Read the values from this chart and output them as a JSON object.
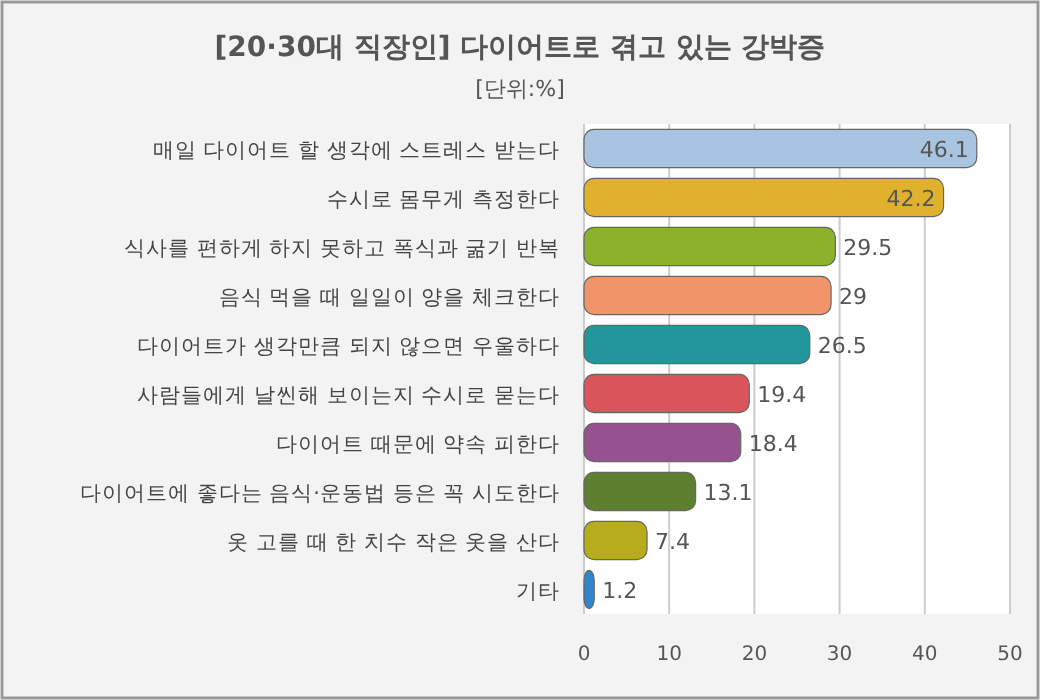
{
  "chart_data": {
    "type": "bar",
    "orientation": "horizontal",
    "title": "[20·30대 직장인] 다이어트로 겪고 있는 강박증",
    "subtitle": "[단위:%]",
    "categories": [
      "매일 다이어트 할 생각에 스트레스 받는다",
      "수시로 몸무게 측정한다",
      "식사를 편하게 하지 못하고 폭식과 굶기 반복",
      "음식 먹을 때 일일이 양을 체크한다",
      "다이어트가 생각만큼 되지 않으면 우울하다",
      "사람들에게 날씬해 보이는지 수시로 묻는다",
      "다이어트 때문에 약속 피한다",
      "다이어트에 좋다는 음식·운동법 등은 꼭 시도한다",
      "옷 고를 때 한 치수 작은 옷을 산다",
      "기타"
    ],
    "values": [
      46.1,
      42.2,
      29.5,
      29,
      26.5,
      19.4,
      18.4,
      13.1,
      7.4,
      1.2
    ],
    "colors": [
      "#a9c4e0",
      "#e0b12c",
      "#8cb12a",
      "#f0946a",
      "#22979b",
      "#d9555b",
      "#95528f",
      "#5c8030",
      "#b7ac1c",
      "#2f86c8"
    ],
    "xlim": [
      0,
      50
    ],
    "xticks": [
      0,
      10,
      20,
      30,
      40,
      50
    ],
    "grid": "x",
    "data_labels": true
  }
}
